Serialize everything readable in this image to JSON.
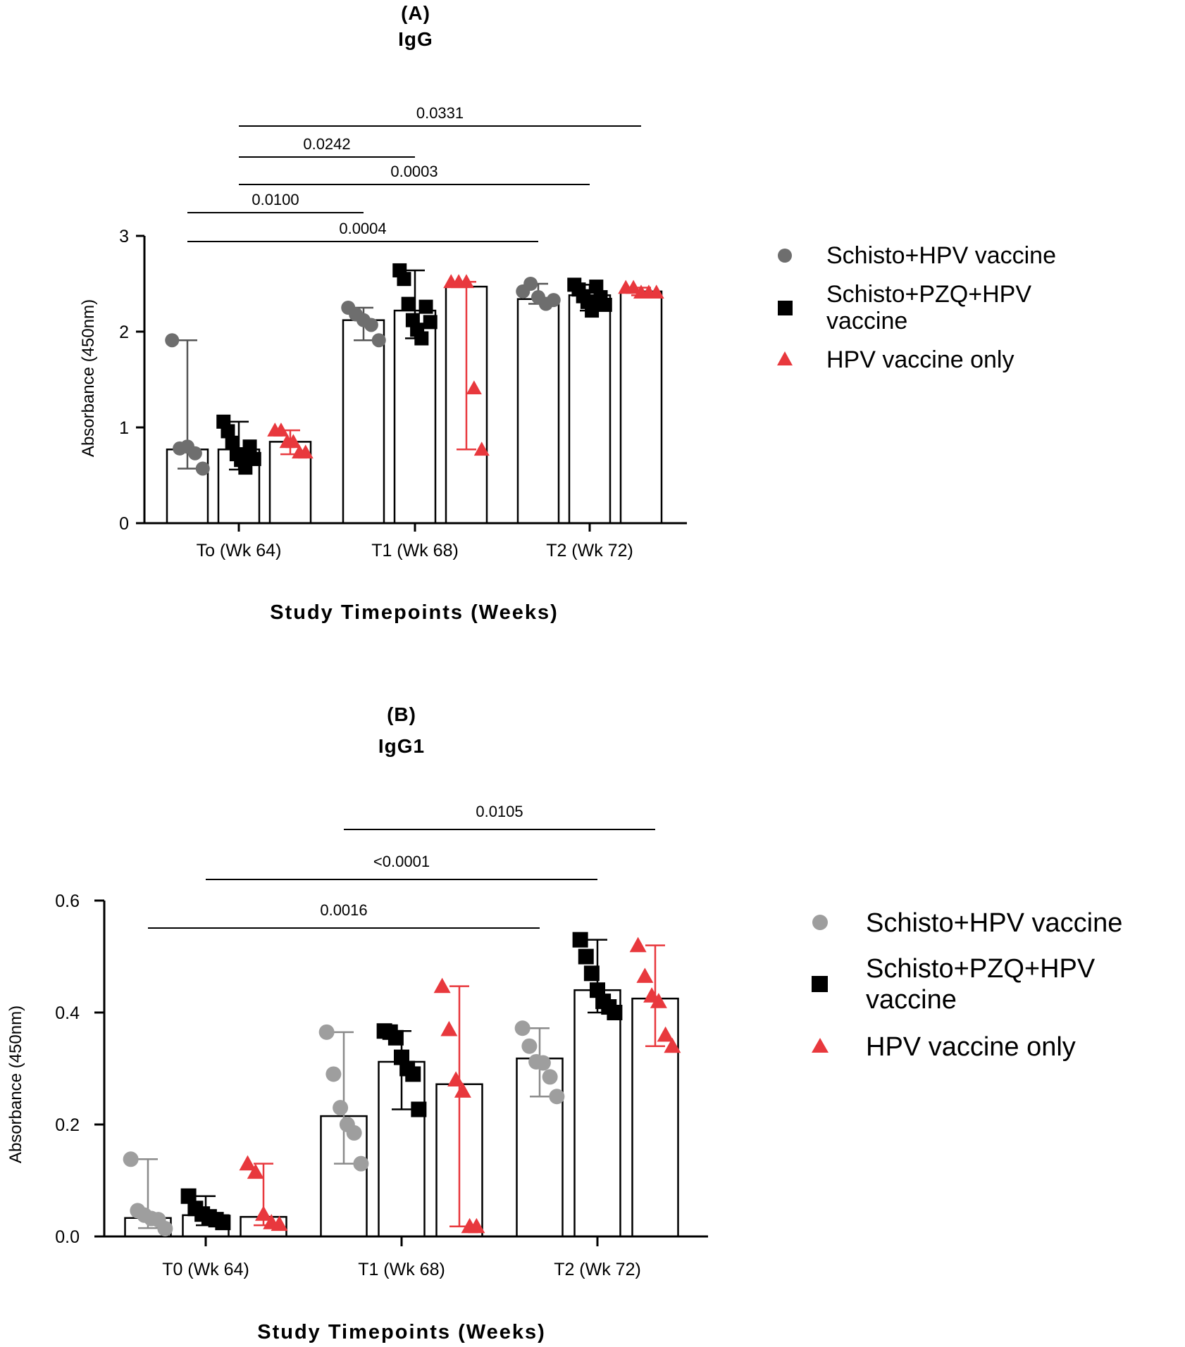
{
  "colors": {
    "Schisto+HPV vaccine A": "#6e6e6e",
    "Schisto+HPV vaccine B": "#9e9e9e",
    "Schisto+PZQ+HPV vaccine": "#000000",
    "HPV vaccine only": "#e8383d"
  },
  "chart_data": [
    {
      "type": "bar",
      "panel": "(A)",
      "title": "IgG",
      "xlabel": "Study Timepoints (Weeks)",
      "ylabel": "Absorbance (450nm)",
      "ylim": [
        0,
        3
      ],
      "yticks": [
        "0",
        "1",
        "2",
        "3"
      ],
      "categories": [
        "To (Wk 64)",
        "T1 (Wk 68)",
        "T2 (Wk 72)"
      ],
      "series": [
        {
          "name": "Schisto+HPV vaccine",
          "marker": "circle",
          "values": [
            0.77,
            2.12,
            2.34
          ],
          "ranges": [
            [
              0.57,
              1.91
            ],
            [
              1.91,
              2.25
            ],
            [
              2.29,
              2.5
            ]
          ],
          "points": [
            [
              1.91,
              0.78,
              0.8,
              0.73,
              0.57
            ],
            [
              2.25,
              2.18,
              2.12,
              2.07,
              1.91
            ],
            [
              2.42,
              2.5,
              2.36,
              2.29,
              2.33
            ]
          ]
        },
        {
          "name": "Schisto+PZQ+HPV vaccine",
          "marker": "square",
          "values": [
            0.77,
            2.22,
            2.38
          ],
          "ranges": [
            [
              0.56,
              1.06
            ],
            [
              1.93,
              2.64
            ],
            [
              2.22,
              2.49
            ]
          ],
          "points": [
            [
              1.06,
              0.96,
              0.84,
              0.72,
              0.66,
              0.58,
              0.8,
              0.67
            ],
            [
              2.64,
              2.55,
              2.29,
              2.12,
              2.02,
              1.93,
              2.26,
              2.1
            ],
            [
              2.49,
              2.44,
              2.37,
              2.31,
              2.22,
              2.47,
              2.36,
              2.28
            ]
          ]
        },
        {
          "name": "HPV vaccine only",
          "marker": "triangle",
          "values": [
            0.85,
            2.47,
            2.42
          ],
          "ranges": [
            [
              0.72,
              0.97
            ],
            [
              0.77,
              2.52
            ],
            [
              2.38,
              2.46
            ]
          ],
          "points": [
            [
              0.97,
              0.97,
              0.85,
              0.85,
              0.74,
              0.74
            ],
            [
              2.52,
              2.52,
              2.52,
              1.41,
              0.77
            ],
            [
              2.46,
              2.46,
              2.41,
              2.41,
              2.41
            ]
          ]
        }
      ],
      "comparisons": [
        {
          "label": "0.0331",
          "from": [
            0,
            1
          ],
          "to": [
            2,
            2
          ]
        },
        {
          "label": "0.0242",
          "from": [
            0,
            1
          ],
          "to": [
            1,
            1
          ]
        },
        {
          "label": "0.0003",
          "from": [
            0,
            1
          ],
          "to": [
            2,
            1
          ]
        },
        {
          "label": "0.0100",
          "from": [
            0,
            0
          ],
          "to": [
            1,
            0
          ]
        },
        {
          "label": "0.0004",
          "from": [
            0,
            0
          ],
          "to": [
            2,
            0
          ]
        }
      ],
      "legend_position": "right"
    },
    {
      "type": "bar",
      "panel": "(B)",
      "title": "IgG1",
      "xlabel": "Study Timepoints (Weeks)",
      "ylabel": "Absorbance (450nm)",
      "ylim": [
        0,
        0.6
      ],
      "yticks": [
        "0.0",
        "0.2",
        "0.4",
        "0.6"
      ],
      "categories": [
        "T0 (Wk 64)",
        "T1 (Wk 68)",
        "T2 (Wk 72)"
      ],
      "series": [
        {
          "name": "Schisto+HPV vaccine",
          "marker": "circle",
          "values": [
            0.033,
            0.215,
            0.318
          ],
          "ranges": [
            [
              0.015,
              0.138
            ],
            [
              0.13,
              0.365
            ],
            [
              0.25,
              0.372
            ]
          ],
          "points": [
            [
              0.138,
              0.046,
              0.038,
              0.032,
              0.03,
              0.014
            ],
            [
              0.365,
              0.29,
              0.23,
              0.2,
              0.185,
              0.13
            ],
            [
              0.372,
              0.34,
              0.312,
              0.31,
              0.285,
              0.25
            ]
          ]
        },
        {
          "name": "Schisto+PZQ+HPV vaccine",
          "marker": "square",
          "values": [
            0.038,
            0.312,
            0.44
          ],
          "ranges": [
            [
              0.02,
              0.072
            ],
            [
              0.227,
              0.367
            ],
            [
              0.4,
              0.53
            ]
          ],
          "points": [
            [
              0.072,
              0.05,
              0.04,
              0.035,
              0.03,
              0.025
            ],
            [
              0.367,
              0.365,
              0.355,
              0.32,
              0.3,
              0.29,
              0.227
            ],
            [
              0.53,
              0.5,
              0.47,
              0.44,
              0.42,
              0.41,
              0.4
            ]
          ]
        },
        {
          "name": "HPV vaccine only",
          "marker": "triangle",
          "values": [
            0.035,
            0.272,
            0.425
          ],
          "ranges": [
            [
              0.02,
              0.13
            ],
            [
              0.018,
              0.447
            ],
            [
              0.34,
              0.52
            ]
          ],
          "points": [
            [
              0.13,
              0.115,
              0.04,
              0.025,
              0.022
            ],
            [
              0.447,
              0.37,
              0.28,
              0.26,
              0.018,
              0.018
            ],
            [
              0.52,
              0.465,
              0.43,
              0.42,
              0.36,
              0.34
            ]
          ]
        }
      ],
      "comparisons": [
        {
          "label": "0.0105",
          "from": [
            1,
            0
          ],
          "to": [
            2,
            2
          ]
        },
        {
          "label": "<0.0001",
          "from": [
            0,
            1
          ],
          "to": [
            2,
            1
          ]
        },
        {
          "label": "0.0016",
          "from": [
            0,
            0
          ],
          "to": [
            2,
            0
          ]
        }
      ],
      "legend_position": "right"
    }
  ]
}
